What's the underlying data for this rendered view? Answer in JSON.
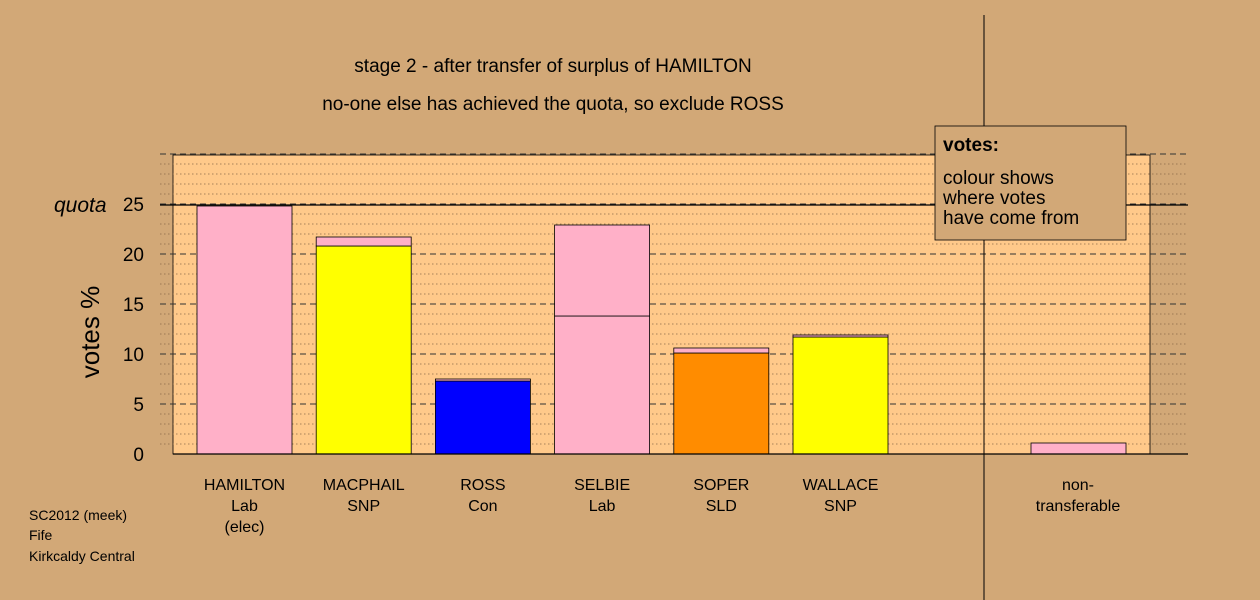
{
  "chart_data": {
    "type": "bar",
    "title": "stage 2 - after transfer of surplus of HAMILTON",
    "subtitle": "no-one else has achieved the quota, so exclude ROSS",
    "ylabel": "votes %",
    "ylim": [
      0,
      30
    ],
    "yticks": [
      0,
      5,
      10,
      15,
      20,
      25
    ],
    "grid": true,
    "quota_label": "quota",
    "quota_value": 24.9,
    "colors": {
      "Lab": "#ffb0c8",
      "SNP": "#ffff00",
      "Con": "#0000ff",
      "SLD": "#ff8c00"
    },
    "categories": [
      {
        "name": "HAMILTON",
        "party": "Lab",
        "note": "(elec)",
        "segments": [
          {
            "from": "Lab",
            "value": 24.8
          }
        ]
      },
      {
        "name": "MACPHAIL",
        "party": "SNP",
        "segments": [
          {
            "from": "SNP",
            "value": 20.8
          },
          {
            "from": "Lab",
            "value": 0.9
          }
        ]
      },
      {
        "name": "ROSS",
        "party": "Con",
        "segments": [
          {
            "from": "Con",
            "value": 7.3
          },
          {
            "from": "Lab",
            "value": 0.2
          }
        ]
      },
      {
        "name": "SELBIE",
        "party": "Lab",
        "segments": [
          {
            "from": "Lab",
            "value": 13.8
          },
          {
            "from": "Lab",
            "value": 9.1
          }
        ]
      },
      {
        "name": "SOPER",
        "party": "SLD",
        "segments": [
          {
            "from": "SLD",
            "value": 10.1
          },
          {
            "from": "Lab",
            "value": 0.5
          }
        ]
      },
      {
        "name": "WALLACE",
        "party": "SNP",
        "segments": [
          {
            "from": "SNP",
            "value": 11.7
          },
          {
            "from": "Lab",
            "value": 0.2
          }
        ]
      }
    ],
    "nontransferable": {
      "label_line1": "non-",
      "label_line2": "transferable",
      "value": 1.1,
      "from": "Lab"
    },
    "legend": {
      "title": "votes:",
      "lines": [
        "colour shows",
        "where votes",
        "have come from"
      ],
      "position": "top-right"
    }
  },
  "footer": {
    "line1": "SC2012 (meek)",
    "line2": "Fife",
    "line3": "Kirkcaldy Central"
  }
}
